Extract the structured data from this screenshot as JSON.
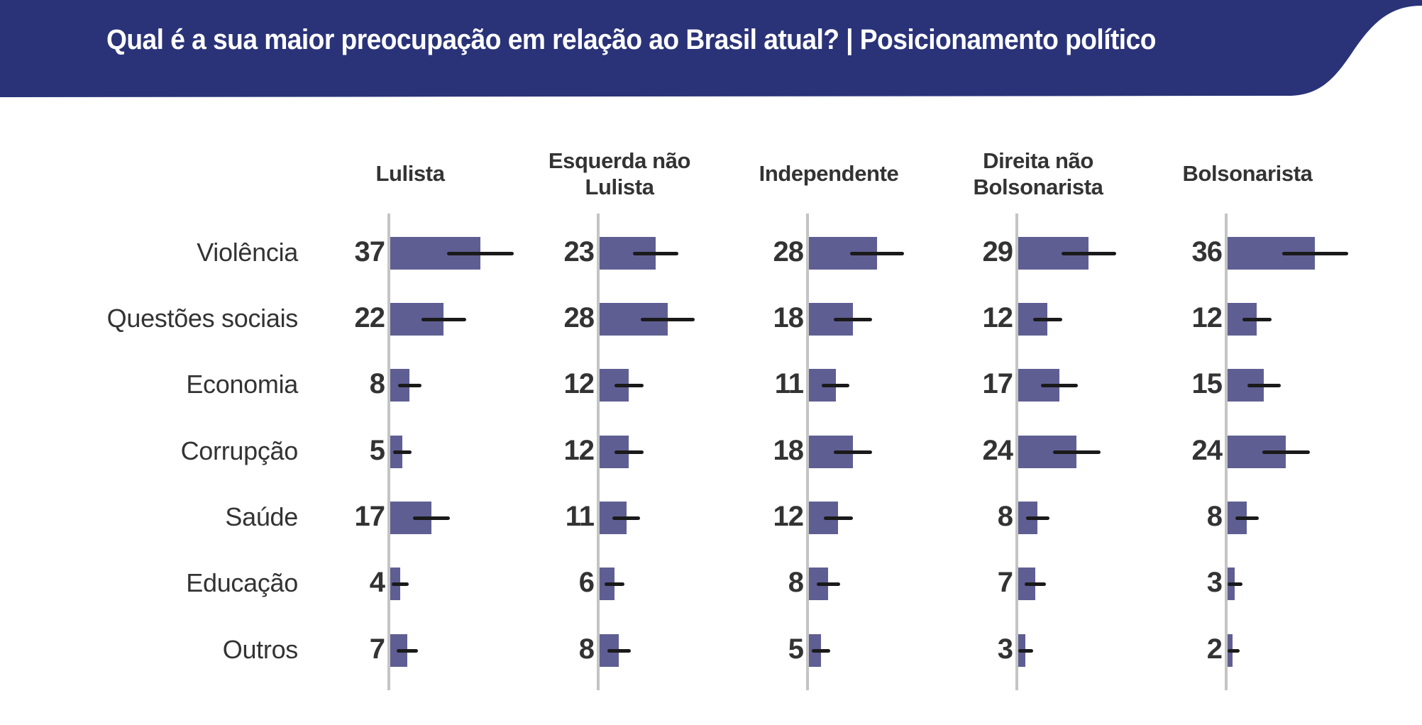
{
  "header": {
    "title": "Qual é a sua maior preocupação em relação ao Brasil atual? | Posicionamento político",
    "background_color": "#2a3378",
    "text_color": "#ffffff"
  },
  "colors": {
    "bar": "#5f5e93",
    "axis": "#c4c4c4",
    "error_bar": "#1a1a1a",
    "text": "#333333"
  },
  "chart_data": {
    "type": "bar",
    "orientation": "horizontal",
    "layout": "small-multiples",
    "title": "Qual é a sua maior preocupação em relação ao Brasil atual? | Posicionamento político",
    "xlabel": "",
    "ylabel": "",
    "grid": false,
    "legend": null,
    "has_error_bars": true,
    "categories": [
      "Violência",
      "Questões sociais",
      "Economia",
      "Corrupção",
      "Saúde",
      "Educação",
      "Outros"
    ],
    "series": [
      {
        "name": "Lulista",
        "header_lines": [
          "Lulista"
        ],
        "values": [
          37,
          22,
          8,
          5,
          17,
          4,
          7
        ]
      },
      {
        "name": "Esquerda não Lulista",
        "header_lines": [
          "Esquerda não",
          "Lulista"
        ],
        "values": [
          23,
          28,
          12,
          12,
          11,
          6,
          8
        ]
      },
      {
        "name": "Independente",
        "header_lines": [
          "Independente"
        ],
        "values": [
          28,
          18,
          11,
          18,
          12,
          8,
          5
        ]
      },
      {
        "name": "Direita não Bolsonarista",
        "header_lines": [
          "Direita não",
          "Bolsonarista"
        ],
        "values": [
          29,
          12,
          17,
          24,
          8,
          7,
          3
        ]
      },
      {
        "name": "Bolsonarista",
        "header_lines": [
          "Bolsonarista"
        ],
        "values": [
          36,
          12,
          15,
          24,
          8,
          3,
          2
        ]
      }
    ],
    "value_unit": "%",
    "xlim": [
      0,
      50
    ]
  }
}
